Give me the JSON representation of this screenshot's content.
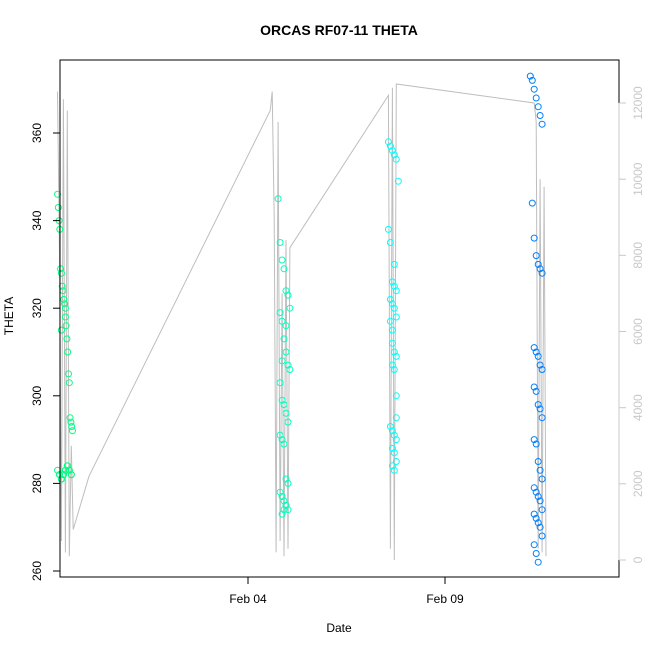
{
  "chart_data": {
    "type": "scatter",
    "title": "ORCAS RF07-11 THETA",
    "xlabel": "Date",
    "ylabel": "THETA",
    "x_ticks": [
      "Feb 04",
      "Feb 09"
    ],
    "y_ticks": [
      "260",
      "280",
      "300",
      "320",
      "340",
      "360"
    ],
    "y2_ticks": [
      "0",
      "2000",
      "4000",
      "6000",
      "8000",
      "10000",
      "12000"
    ],
    "ylim": [
      258,
      376
    ],
    "y2lim": [
      -250,
      12840
    ],
    "grid": false,
    "legend": "none",
    "colors": {
      "rf07": "#00ff80",
      "rf08": "#00ffbf",
      "rf09": "#00ffff",
      "rf11": "#0080ff",
      "altitude_line": "#bebebe",
      "axis": "#000000",
      "right_axis": "#c8c8c8"
    },
    "altitude_track": [
      {
        "x": 0.2,
        "y": 12300
      },
      {
        "x": 0.25,
        "y": 8000
      },
      {
        "x": 0.3,
        "y": 500
      },
      {
        "x": 0.35,
        "y": 12100
      },
      {
        "x": 0.4,
        "y": 200
      },
      {
        "x": 0.45,
        "y": 11800
      },
      {
        "x": 0.5,
        "y": 100
      },
      {
        "x": 0.55,
        "y": 3000
      },
      {
        "x": 0.6,
        "y": 800
      },
      {
        "x": 1.0,
        "y": 2200
      },
      {
        "x": 5.6,
        "y": 11800
      },
      {
        "x": 5.65,
        "y": 12300
      },
      {
        "x": 5.7,
        "y": 9000
      },
      {
        "x": 5.75,
        "y": 200
      },
      {
        "x": 5.8,
        "y": 11500
      },
      {
        "x": 5.85,
        "y": 500
      },
      {
        "x": 5.9,
        "y": 7000
      },
      {
        "x": 5.95,
        "y": 100
      },
      {
        "x": 6.0,
        "y": 8400
      },
      {
        "x": 6.05,
        "y": 300
      },
      {
        "x": 6.1,
        "y": 8200
      },
      {
        "x": 8.6,
        "y": 12200
      },
      {
        "x": 8.65,
        "y": 300
      },
      {
        "x": 8.7,
        "y": 12400
      },
      {
        "x": 8.75,
        "y": 0
      },
      {
        "x": 8.8,
        "y": 12500
      },
      {
        "x": 12.3,
        "y": 12000
      },
      {
        "x": 12.35,
        "y": 11500
      },
      {
        "x": 12.4,
        "y": 300
      },
      {
        "x": 12.45,
        "y": 10000
      },
      {
        "x": 12.5,
        "y": 200
      },
      {
        "x": 12.55,
        "y": 9800
      },
      {
        "x": 12.6,
        "y": 100
      }
    ],
    "series": [
      {
        "color": "#00ff80",
        "x": [
          0.2,
          0.22,
          0.24,
          0.26,
          0.28,
          0.3,
          0.32,
          0.34,
          0.36,
          0.38,
          0.4,
          0.42,
          0.44,
          0.46,
          0.48,
          0.5,
          0.52,
          0.54,
          0.56,
          0.58,
          0.2,
          0.25,
          0.3,
          0.35,
          0.4,
          0.45,
          0.5,
          0.55,
          0.3,
          0.35,
          0.4,
          0.45,
          0.5,
          0.25,
          0.3,
          0.35,
          0.4,
          0.45,
          0.5,
          0.55,
          0.3,
          0.4
        ],
        "y": [
          346,
          343,
          340,
          338,
          329,
          328,
          325,
          324,
          322,
          321,
          318,
          316,
          313,
          310,
          305,
          303,
          295,
          294,
          293,
          292,
          283,
          282,
          281,
          282,
          283,
          284,
          283,
          282,
          281,
          282,
          283,
          284,
          283,
          282,
          281,
          282,
          283,
          284,
          283,
          282,
          315,
          320
        ]
      },
      {
        "color": "#00ffbf",
        "x": [
          5.8,
          5.85,
          5.9,
          5.95,
          6.0,
          6.05,
          6.1,
          5.85,
          5.9,
          5.95,
          6.0,
          6.05,
          6.1,
          5.85,
          5.9,
          5.95,
          6.0,
          6.05,
          5.85,
          5.9,
          5.95,
          6.0,
          6.05,
          5.85,
          5.9,
          5.95,
          6.0,
          6.05,
          5.9,
          5.95,
          6.0,
          5.9,
          6.0
        ],
        "y": [
          345,
          335,
          331,
          329,
          324,
          323,
          320,
          319,
          317,
          313,
          310,
          307,
          306,
          303,
          299,
          298,
          296,
          294,
          291,
          290,
          289,
          281,
          280,
          278,
          277,
          276,
          275,
          274,
          273,
          274,
          275,
          308,
          316
        ]
      },
      {
        "color": "#00ffff",
        "x": [
          8.6,
          8.65,
          8.7,
          8.75,
          8.8,
          8.85,
          8.6,
          8.65,
          8.7,
          8.75,
          8.8,
          8.65,
          8.7,
          8.75,
          8.8,
          8.65,
          8.7,
          8.75,
          8.8,
          8.7,
          8.75,
          8.8,
          8.65,
          8.7,
          8.75,
          8.8,
          8.7,
          8.75,
          8.8,
          8.7,
          8.75,
          8.8,
          8.7,
          8.75
        ],
        "y": [
          358,
          357,
          356,
          355,
          354,
          349,
          338,
          335,
          326,
          325,
          324,
          322,
          321,
          320,
          318,
          317,
          315,
          310,
          309,
          307,
          306,
          295,
          293,
          292,
          291,
          290,
          288,
          287,
          285,
          284,
          283,
          300,
          312,
          330
        ]
      },
      {
        "color": "#0080ff",
        "x": [
          12.2,
          12.25,
          12.3,
          12.35,
          12.4,
          12.45,
          12.5,
          12.25,
          12.3,
          12.35,
          12.4,
          12.45,
          12.5,
          12.3,
          12.35,
          12.4,
          12.45,
          12.5,
          12.3,
          12.35,
          12.4,
          12.45,
          12.5,
          12.3,
          12.35,
          12.4,
          12.45,
          12.5,
          12.3,
          12.35,
          12.4,
          12.45,
          12.5,
          12.3,
          12.35,
          12.4,
          12.45,
          12.5,
          12.3,
          12.35,
          12.4
        ],
        "y": [
          373,
          372,
          370,
          368,
          366,
          364,
          362,
          344,
          336,
          332,
          330,
          329,
          328,
          311,
          310,
          309,
          307,
          306,
          302,
          301,
          298,
          297,
          295,
          290,
          289,
          285,
          283,
          281,
          279,
          278,
          277,
          276,
          274,
          273,
          272,
          271,
          270,
          268,
          266,
          264,
          262
        ]
      }
    ]
  }
}
